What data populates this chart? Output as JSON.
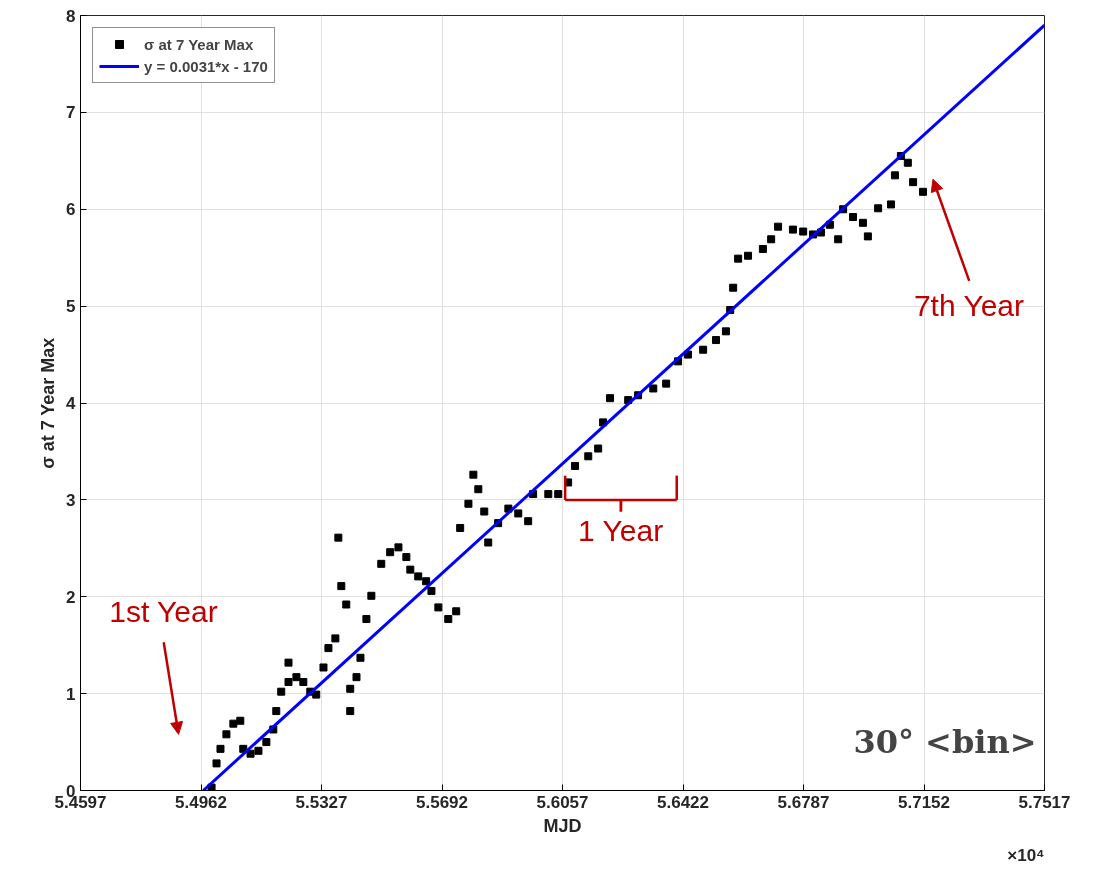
{
  "chart_data": {
    "type": "scatter",
    "xlabel": "MJD",
    "ylabel": "σ at 7 Year Max",
    "xlim": [
      5.4597,
      5.7517
    ],
    "ylim": [
      0,
      8
    ],
    "xticks": [
      {
        "value": 5.4597,
        "label": "5.4597"
      },
      {
        "value": 5.4962,
        "label": "5.4962"
      },
      {
        "value": 5.5327,
        "label": "5.5327"
      },
      {
        "value": 5.5692,
        "label": "5.5692"
      },
      {
        "value": 5.6057,
        "label": "5.6057"
      },
      {
        "value": 5.6422,
        "label": "5.6422"
      },
      {
        "value": 5.6787,
        "label": "5.6787"
      },
      {
        "value": 5.7152,
        "label": "5.7152"
      },
      {
        "value": 5.7517,
        "label": "5.7517"
      }
    ],
    "yticks": [
      0,
      1,
      2,
      3,
      4,
      5,
      6,
      7,
      8
    ],
    "grid": true,
    "legend": "top left",
    "series": [
      {
        "name": "σ at 7 Year Max",
        "color": "#000000",
        "marker": "square",
        "x": [
          5.4994,
          5.5009,
          5.5021,
          5.5039,
          5.506,
          5.5081,
          5.509,
          5.5112,
          5.5136,
          5.516,
          5.5181,
          5.519,
          5.5205,
          5.5227,
          5.5251,
          5.5272,
          5.5293,
          5.5311,
          5.5227,
          5.5333,
          5.5348,
          5.5369,
          5.5378,
          5.5387,
          5.5402,
          5.5414,
          5.5414,
          5.5433,
          5.5445,
          5.5463,
          5.5478,
          5.5508,
          5.5535,
          5.556,
          5.5584,
          5.5596,
          5.562,
          5.5644,
          5.566,
          5.5681,
          5.5711,
          5.5735,
          5.5747,
          5.5772,
          5.5787,
          5.5802,
          5.582,
          5.5832,
          5.5862,
          5.5893,
          5.5923,
          5.5953,
          5.5968,
          5.6014,
          5.6044,
          5.6074,
          5.6095,
          5.6135,
          5.6165,
          5.618,
          5.6201,
          5.6256,
          5.6286,
          5.6332,
          5.6371,
          5.6407,
          5.6437,
          5.6483,
          5.6522,
          5.6552,
          5.6565,
          5.6574,
          5.6589,
          5.6619,
          5.6664,
          5.6689,
          5.671,
          5.6755,
          5.6786,
          5.6816,
          5.684,
          5.6867,
          5.6892,
          5.6907,
          5.6937,
          5.6967,
          5.6982,
          5.7013,
          5.7052,
          5.7064,
          5.7082,
          5.7103,
          5.7119,
          5.7149
        ],
        "values": [
          0.03,
          0.28,
          0.43,
          0.58,
          0.69,
          0.72,
          0.43,
          0.38,
          0.41,
          0.5,
          0.63,
          0.82,
          1.02,
          1.12,
          1.17,
          1.12,
          1.02,
          0.99,
          1.32,
          1.27,
          1.47,
          1.57,
          2.61,
          2.11,
          1.92,
          1.05,
          0.82,
          1.17,
          1.37,
          1.77,
          2.01,
          2.34,
          2.46,
          2.51,
          2.41,
          2.28,
          2.21,
          2.16,
          2.06,
          1.89,
          1.77,
          1.85,
          2.71,
          2.96,
          3.26,
          3.11,
          2.88,
          2.56,
          2.76,
          2.91,
          2.86,
          2.78,
          3.06,
          3.06,
          3.06,
          3.18,
          3.35,
          3.45,
          3.53,
          3.8,
          4.05,
          4.03,
          4.08,
          4.15,
          4.2,
          4.43,
          4.5,
          4.55,
          4.65,
          4.74,
          4.96,
          5.19,
          5.49,
          5.52,
          5.59,
          5.69,
          5.82,
          5.79,
          5.77,
          5.74,
          5.76,
          5.84,
          5.69,
          6.0,
          5.92,
          5.86,
          5.72,
          6.01,
          6.05,
          6.35,
          6.55,
          6.48,
          6.28,
          6.18
        ]
      },
      {
        "name": "y = 0.0031*x - 170",
        "type": "line",
        "color": "#0000ff",
        "marker": "none",
        "line_style": "solid",
        "x": [
          5.4969,
          5.7517
        ],
        "values": [
          0,
          7.9
        ]
      }
    ],
    "annotations": [
      "1st Year",
      "1 Year",
      "7th Year",
      "30° <bin>",
      "×10⁴"
    ]
  }
}
